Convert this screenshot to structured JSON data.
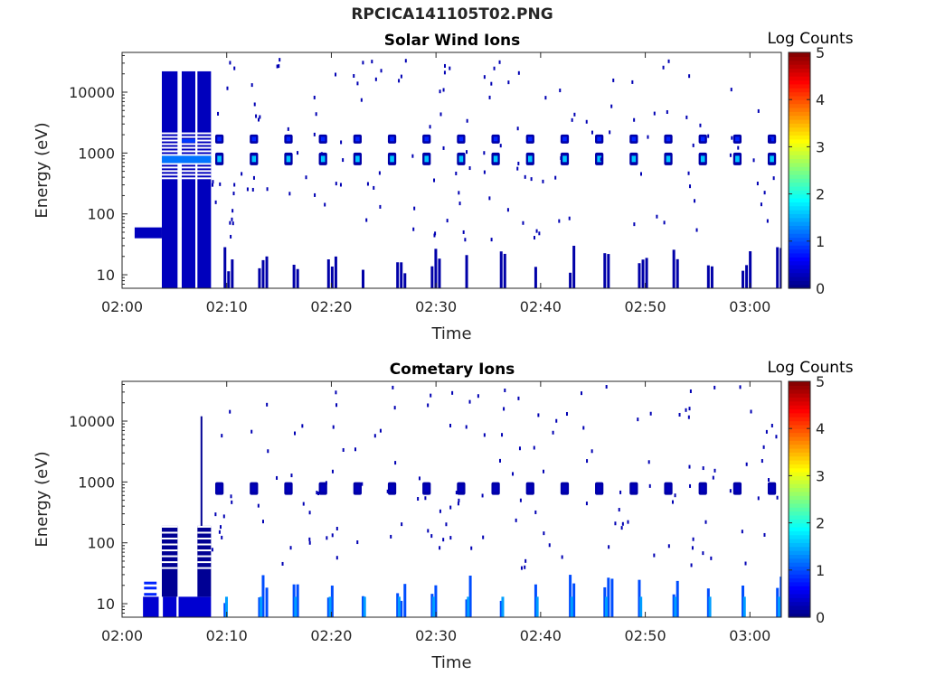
{
  "figure_title": "RPCICA141105T02.PNG",
  "chart_data": [
    {
      "type": "heatmap",
      "title": "Solar Wind Ions",
      "xlabel": "Time",
      "ylabel": "Energy (eV)",
      "x_ticks": [
        "02:00",
        "02:10",
        "02:20",
        "02:30",
        "02:40",
        "02:50",
        "03:00"
      ],
      "x_range_minutes": [
        0,
        63
      ],
      "y_scale": "log",
      "y_ticks": [
        "10",
        "100",
        "1000",
        "10000"
      ],
      "y_range": [
        6,
        45000
      ],
      "colorbar_label": "Log Counts",
      "colorbar_ticks": [
        "0",
        "1",
        "2",
        "3",
        "4",
        "5"
      ],
      "colorbar_range": [
        0,
        5
      ],
      "colormap": "jet",
      "series": [
        {
          "role": "dense-block",
          "t_start": 3.8,
          "t_end": 8.5,
          "e_min": 6,
          "e_max": 22000,
          "log_counts": 0.3
        },
        {
          "role": "main-beam",
          "energy_eV": 800,
          "period_min": 3.3,
          "t_start": 8.5,
          "t_end": 63,
          "log_counts_peak": 1.6
        },
        {
          "role": "alpha-beam",
          "energy_eV": 1700,
          "period_min": 3.3,
          "t_start": 8.5,
          "t_end": 63,
          "log_counts_peak": 0.8
        },
        {
          "role": "low-energy-columns",
          "e_max": 30,
          "period_min": 3.3,
          "t_start": 8.5,
          "t_end": 63,
          "log_counts": 0.2
        }
      ]
    },
    {
      "type": "heatmap",
      "title": "Cometary Ions",
      "xlabel": "Time",
      "ylabel": "Energy (eV)",
      "x_ticks": [
        "02:00",
        "02:10",
        "02:20",
        "02:30",
        "02:40",
        "02:50",
        "03:00"
      ],
      "x_range_minutes": [
        0,
        63
      ],
      "y_scale": "log",
      "y_ticks": [
        "10",
        "100",
        "1000",
        "10000"
      ],
      "y_range": [
        6,
        45000
      ],
      "colorbar_label": "Log Counts",
      "colorbar_ticks": [
        "0",
        "1",
        "2",
        "3",
        "4",
        "5"
      ],
      "colorbar_range": [
        0,
        5
      ],
      "colormap": "jet",
      "series": [
        {
          "role": "dense-block",
          "t_start": 2.0,
          "t_end": 8.5,
          "e_min": 6,
          "e_max": 13,
          "log_counts": 0.4
        },
        {
          "role": "mid-columns",
          "t_start": 3.8,
          "t_end": 8.5,
          "e_min": 13,
          "e_max": 190,
          "log_counts": 0.1
        },
        {
          "role": "main-beam",
          "energy_eV": 780,
          "period_min": 3.3,
          "t_start": 8.5,
          "t_end": 63,
          "log_counts_peak": 0.3
        },
        {
          "role": "low-energy-columns",
          "e_max": 30,
          "period_min": 3.3,
          "t_start": 8.5,
          "t_end": 63,
          "log_counts": 1.0
        }
      ]
    }
  ]
}
